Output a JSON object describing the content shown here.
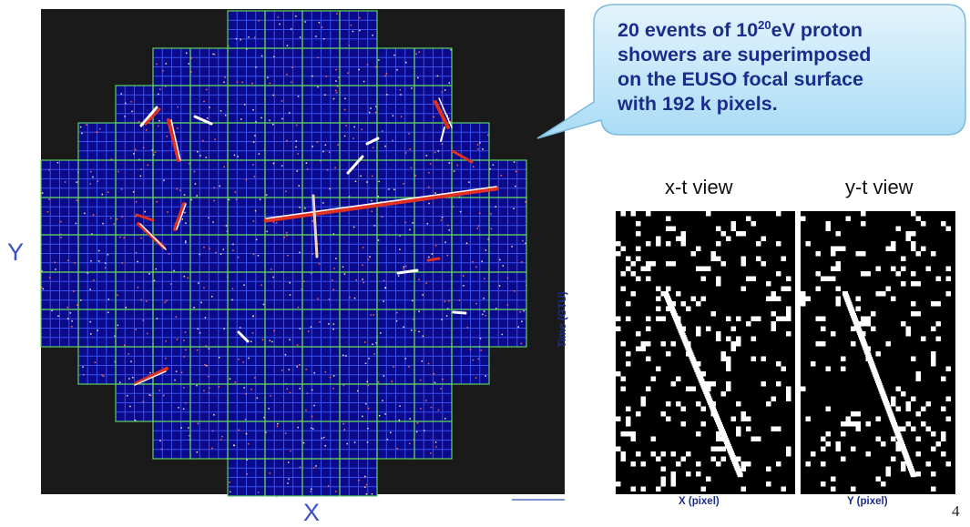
{
  "slide": {
    "axis_y": "Y",
    "axis_x": "X",
    "callout": {
      "line1": {
        "before": "20 events of 10",
        "superscript": "20",
        "after": "eV proton"
      },
      "line2": "showers are superimposed",
      "line3": "on the EUSO focal surface",
      "line4": "with 192 k pixels."
    },
    "xt_title": "x-t view",
    "yt_title": "y-t view",
    "time_label": "Time (GTU)",
    "xt_xlabel": "X (pixel)",
    "yt_xlabel": "Y (pixel)",
    "page_number": "4"
  }
}
